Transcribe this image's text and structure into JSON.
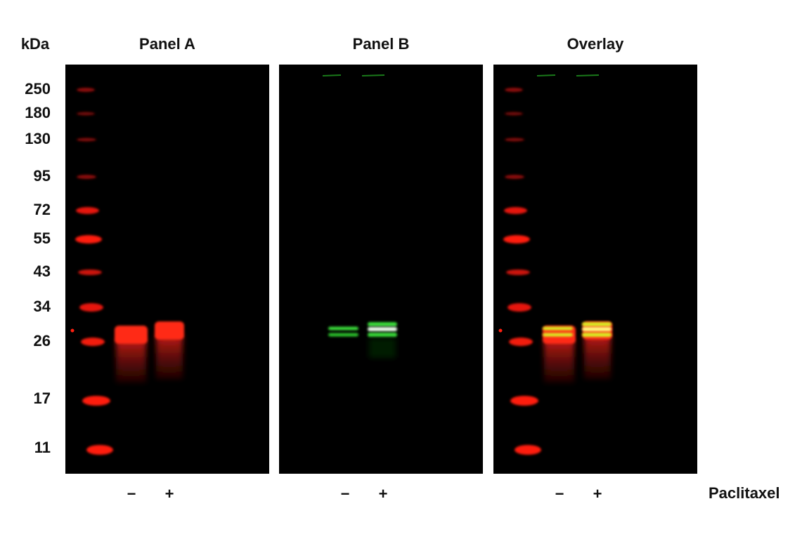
{
  "kda_label": "kDa",
  "panels": [
    {
      "title": "Panel A",
      "lanes": [
        "−",
        "+"
      ]
    },
    {
      "title": "Panel B",
      "lanes": [
        "−",
        "+"
      ]
    },
    {
      "title": "Overlay",
      "lanes": [
        "−",
        "+"
      ]
    }
  ],
  "markers": [
    "250",
    "180",
    "130",
    "95",
    "72",
    "55",
    "43",
    "34",
    "26",
    "17",
    "11"
  ],
  "treatment": "Paclitaxel"
}
